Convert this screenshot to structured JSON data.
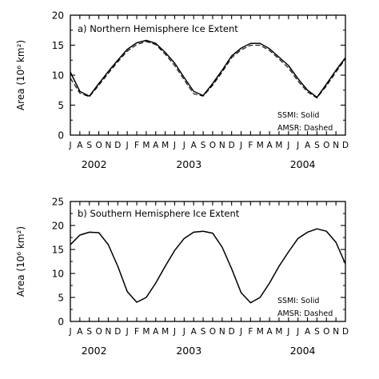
{
  "chart_data": [
    {
      "type": "line",
      "title": "a) Northern Hemisphere Ice Extent",
      "ylabel": "Area (10⁶ km²)",
      "ylim": [
        0,
        20
      ],
      "yticks": [
        0,
        5,
        10,
        15,
        20
      ],
      "x_months": [
        "J",
        "A",
        "S",
        "O",
        "N",
        "D",
        "J",
        "F",
        "M",
        "A",
        "M",
        "J",
        "J",
        "A",
        "S",
        "O",
        "N",
        "D",
        "J",
        "F",
        "M",
        "A",
        "M",
        "J",
        "J",
        "A",
        "S",
        "O",
        "N",
        "D"
      ],
      "x_years": [
        "2002",
        "2003",
        "2004"
      ],
      "legend": [
        "SSMI: Solid",
        "AMSR: Dashed"
      ],
      "series": [
        {
          "name": "SSMI",
          "style": "solid",
          "values": [
            10.5,
            7.3,
            6.5,
            8.6,
            10.6,
            12.5,
            14.3,
            15.4,
            15.8,
            15.3,
            13.8,
            12.0,
            9.6,
            7.3,
            6.6,
            8.6,
            10.8,
            13.2,
            14.5,
            15.3,
            15.3,
            14.4,
            13.0,
            11.6,
            9.4,
            7.5,
            6.3,
            8.5,
            10.8,
            12.9
          ]
        },
        {
          "name": "AMSR",
          "style": "dashed",
          "values": [
            9.5,
            7.0,
            6.4,
            8.3,
            10.3,
            12.2,
            14.0,
            15.1,
            15.6,
            15.1,
            13.5,
            11.6,
            9.2,
            6.9,
            6.5,
            8.3,
            10.5,
            12.9,
            14.2,
            15.0,
            15.0,
            14.1,
            12.7,
            11.2,
            9.0,
            7.2,
            6.2,
            8.2,
            10.5,
            12.7
          ]
        }
      ]
    },
    {
      "type": "line",
      "title": "b) Southern Hemisphere Ice Extent",
      "ylabel": "Area (10⁶ km²)",
      "ylim": [
        0,
        25
      ],
      "yticks": [
        0,
        5,
        10,
        15,
        20,
        25
      ],
      "x_months": [
        "J",
        "A",
        "S",
        "O",
        "N",
        "D",
        "J",
        "F",
        "M",
        "A",
        "M",
        "J",
        "J",
        "A",
        "S",
        "O",
        "N",
        "D",
        "J",
        "F",
        "M",
        "A",
        "M",
        "J",
        "J",
        "A",
        "S",
        "O",
        "N",
        "D"
      ],
      "x_years": [
        "2002",
        "2003",
        "2004"
      ],
      "legend": [
        "SSMI: Solid",
        "AMSR: Dashed"
      ],
      "series": [
        {
          "name": "SSMI",
          "style": "solid",
          "values": [
            16.0,
            18.0,
            18.6,
            18.5,
            16.0,
            11.5,
            6.2,
            4.0,
            5.0,
            8.0,
            11.5,
            14.8,
            17.3,
            18.6,
            18.8,
            18.4,
            15.5,
            11.0,
            6.0,
            3.9,
            5.0,
            8.0,
            11.5,
            14.5,
            17.3,
            18.6,
            19.3,
            18.8,
            16.5,
            12.0
          ]
        },
        {
          "name": "AMSR",
          "style": "dashed",
          "values": [
            16.0,
            18.0,
            18.6,
            18.5,
            16.0,
            11.5,
            6.2,
            4.0,
            5.0,
            8.0,
            11.5,
            14.8,
            17.3,
            18.6,
            18.8,
            18.4,
            15.5,
            11.0,
            6.0,
            3.9,
            5.0,
            8.0,
            11.5,
            14.5,
            17.3,
            18.6,
            19.3,
            18.8,
            16.5,
            12.0
          ]
        }
      ]
    }
  ]
}
